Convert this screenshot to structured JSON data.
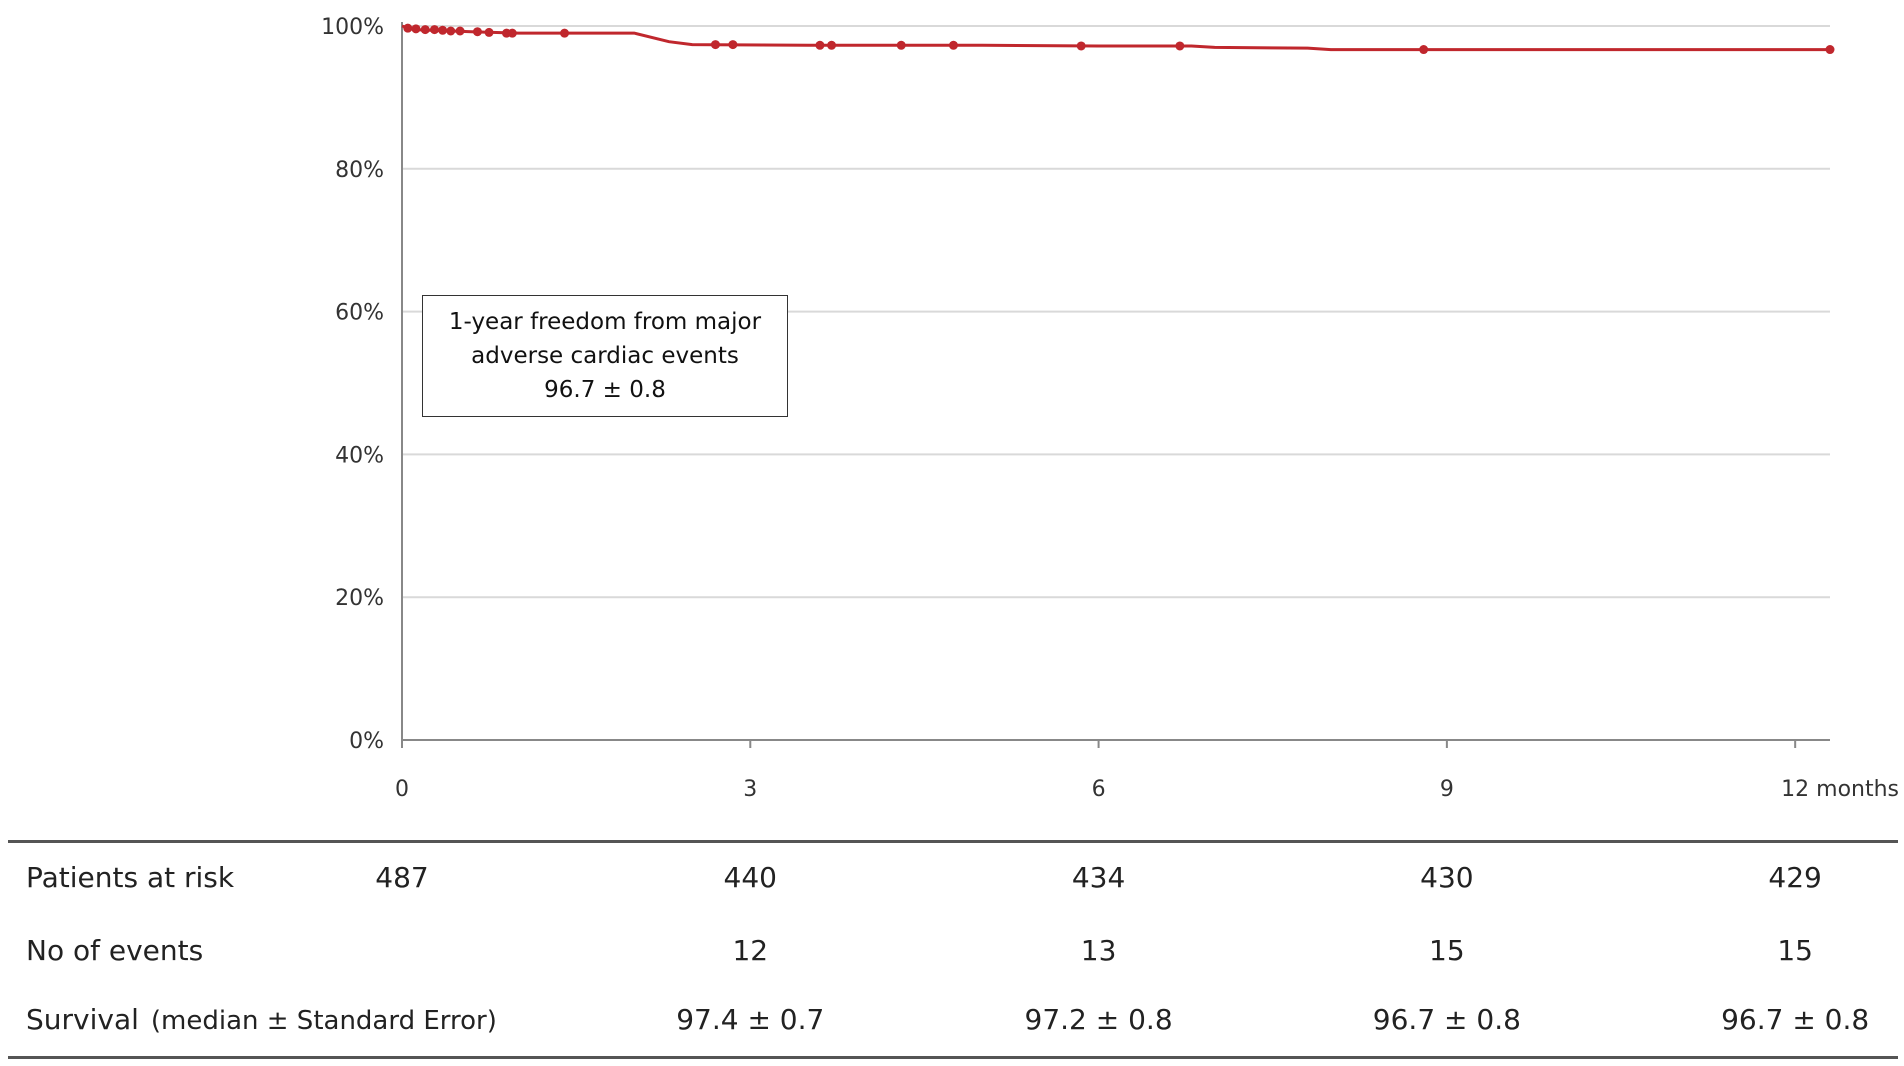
{
  "chart_data": {
    "type": "line",
    "title": "",
    "xlabel": "",
    "ylabel": "",
    "x_unit_label": "months",
    "xlim": [
      0,
      12.3
    ],
    "ylim": [
      0,
      100
    ],
    "x_ticks": [
      0,
      3,
      6,
      9,
      12
    ],
    "x_tick_labels": [
      "0",
      "3",
      "6",
      "9",
      "12 months"
    ],
    "y_ticks": [
      0,
      20,
      40,
      60,
      80,
      100
    ],
    "y_tick_labels": [
      "0%",
      "20%",
      "40%",
      "60%",
      "80%",
      "100%"
    ],
    "grid": "horizontal",
    "series": [
      {
        "color": "#c0272d",
        "points": [
          [
            0,
            100
          ],
          [
            0.1,
            99.5
          ],
          [
            0.6,
            99.2
          ],
          [
            1.0,
            99.0
          ],
          [
            2.0,
            99.0
          ],
          [
            2.3,
            97.8
          ],
          [
            2.5,
            97.4
          ],
          [
            3.5,
            97.3
          ],
          [
            5.0,
            97.3
          ],
          [
            6.0,
            97.2
          ],
          [
            6.8,
            97.2
          ],
          [
            7.0,
            97.0
          ],
          [
            7.8,
            96.9
          ],
          [
            8.0,
            96.7
          ],
          [
            12.3,
            96.7
          ]
        ],
        "censor_marks": [
          [
            0.05,
            99.7
          ],
          [
            0.12,
            99.6
          ],
          [
            0.2,
            99.5
          ],
          [
            0.28,
            99.5
          ],
          [
            0.35,
            99.4
          ],
          [
            0.42,
            99.3
          ],
          [
            0.5,
            99.3
          ],
          [
            0.65,
            99.2
          ],
          [
            0.75,
            99.1
          ],
          [
            0.9,
            99.0
          ],
          [
            0.95,
            99.0
          ],
          [
            1.4,
            99.0
          ],
          [
            2.7,
            97.4
          ],
          [
            2.85,
            97.4
          ],
          [
            3.6,
            97.3
          ],
          [
            3.7,
            97.3
          ],
          [
            4.3,
            97.3
          ],
          [
            4.75,
            97.3
          ],
          [
            5.85,
            97.2
          ],
          [
            6.7,
            97.2
          ],
          [
            8.8,
            96.7
          ],
          [
            12.3,
            96.7
          ]
        ]
      }
    ],
    "annotation": {
      "lines": [
        "1-year freedom from major",
        "adverse cardiac events",
        "96.7 ± 0.8"
      ]
    }
  },
  "risk_table": {
    "columns_x": [
      0,
      3,
      6,
      9,
      12
    ],
    "rows": [
      {
        "label": "Patients at risk",
        "sublabel": "",
        "values": [
          "487",
          "440",
          "434",
          "430",
          "429"
        ]
      },
      {
        "label": "No of events",
        "sublabel": "",
        "values": [
          "",
          "12",
          "13",
          "15",
          "15"
        ]
      },
      {
        "label": "Survival",
        "sublabel": "(median ± Standard Error)",
        "values": [
          "",
          "97.4 ± 0.7",
          "97.2 ± 0.8",
          "96.7 ± 0.8",
          "96.7 ± 0.8"
        ]
      }
    ]
  }
}
